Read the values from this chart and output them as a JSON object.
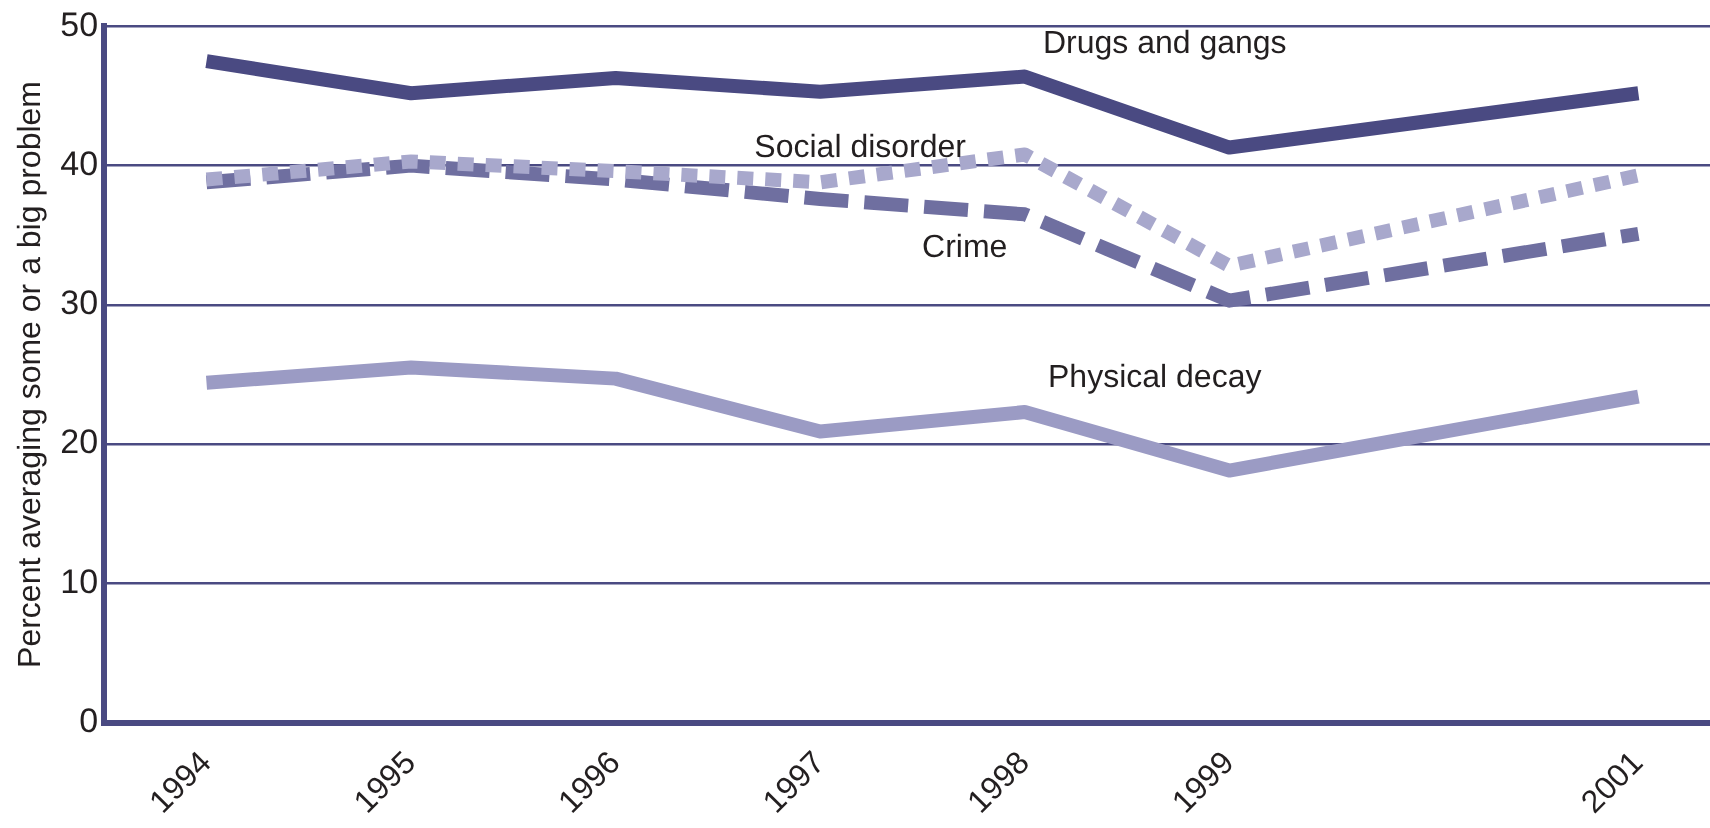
{
  "chart_data": {
    "type": "line",
    "ylabel": "Percent averaging some or a big problem",
    "x": [
      1994,
      1995,
      1996,
      1997,
      1998,
      1999,
      2001
    ],
    "xlim": [
      1993.5,
      2001.35
    ],
    "xticks": [
      1994,
      1995,
      1996,
      1997,
      1998,
      1999,
      2001
    ],
    "ylim": [
      0,
      50
    ],
    "yticks": [
      0,
      10,
      20,
      30,
      40,
      50
    ],
    "grid": "y",
    "legend": false,
    "marker": "none",
    "series": [
      {
        "name": "Drugs and gangs",
        "color": "#4a4a82",
        "line_style": "solid",
        "values": [
          47.5,
          45.2,
          46.3,
          45.3,
          46.4,
          41.3,
          45.2
        ]
      },
      {
        "name": "Social disorder",
        "color": "#a8a8cc",
        "line_style": "dotted",
        "values": [
          39.0,
          40.3,
          39.6,
          38.8,
          40.8,
          32.8,
          39.3
        ]
      },
      {
        "name": "Crime",
        "color": "#6f6fa0",
        "line_style": "dashed",
        "values": [
          38.8,
          40.0,
          39.0,
          37.6,
          36.5,
          30.3,
          35.1
        ]
      },
      {
        "name": "Physical decay",
        "color": "#9b9bc4",
        "line_style": "solid",
        "values": [
          24.4,
          25.5,
          24.7,
          20.9,
          22.3,
          18.1,
          23.4
        ]
      }
    ]
  }
}
